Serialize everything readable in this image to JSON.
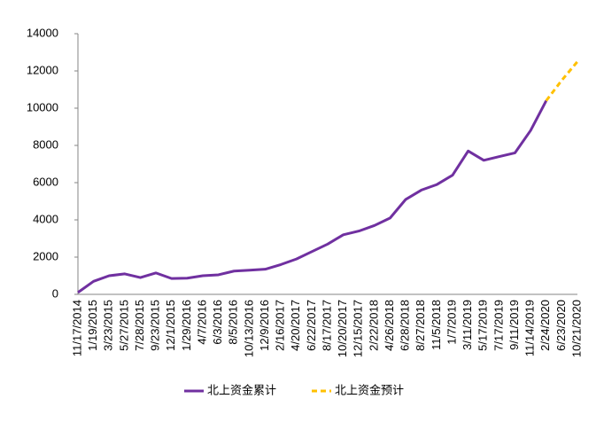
{
  "chart_data": {
    "type": "line",
    "categories": [
      "11/17/2014",
      "1/19/2015",
      "3/23/2015",
      "5/27/2015",
      "7/28/2015",
      "9/23/2015",
      "12/1/2015",
      "1/29/2016",
      "4/7/2016",
      "6/3/2016",
      "8/5/2016",
      "10/13/2016",
      "12/9/2016",
      "2/16/2017",
      "4/20/2017",
      "6/22/2017",
      "8/17/2017",
      "10/20/2017",
      "12/15/2017",
      "2/22/2018",
      "4/26/2018",
      "6/28/2018",
      "8/27/2018",
      "11/5/2018",
      "1/7/2019",
      "3/11/2019",
      "5/17/2019",
      "7/17/2019",
      "9/11/2019",
      "11/14/2019",
      "2/24/2020",
      "6/23/2020",
      "10/21/2020"
    ],
    "series": [
      {
        "name": "北上资金累计",
        "color": "#7030a0",
        "dashed": false,
        "values": [
          100,
          700,
          1000,
          1100,
          900,
          1150,
          850,
          870,
          1000,
          1050,
          1250,
          1300,
          1350,
          1600,
          1900,
          2300,
          2700,
          3200,
          3400,
          3700,
          4100,
          5100,
          5600,
          5900,
          6400,
          7700,
          7200,
          7400,
          7600,
          8800,
          10400,
          null,
          null
        ]
      },
      {
        "name": "北上资金预计",
        "color": "#ffc000",
        "dashed": true,
        "values": [
          null,
          null,
          null,
          null,
          null,
          null,
          null,
          null,
          null,
          null,
          null,
          null,
          null,
          null,
          null,
          null,
          null,
          null,
          null,
          null,
          null,
          null,
          null,
          null,
          null,
          null,
          null,
          null,
          null,
          null,
          10400,
          11500,
          12500
        ]
      }
    ],
    "ylim": [
      0,
      14000
    ],
    "yticks": [
      0,
      2000,
      4000,
      6000,
      8000,
      10000,
      12000,
      14000
    ],
    "grid": false,
    "legend": "bottom"
  }
}
